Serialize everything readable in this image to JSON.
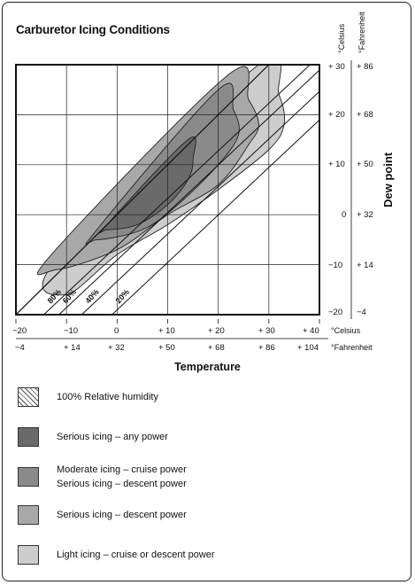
{
  "chart_data": {
    "type": "area",
    "title": "Carburetor Icing Conditions",
    "xlabel": "Temperature",
    "ylabel": "Dew point",
    "xlim": [
      -20,
      40
    ],
    "ylim": [
      -20,
      30
    ],
    "x_ticks_celsius": [
      "−20",
      "−10",
      "0",
      "+ 10",
      "+ 20",
      "+ 30",
      "+ 40"
    ],
    "x_ticks_fahrenheit": [
      "−4",
      "+ 14",
      "+ 32",
      "+ 50",
      "+ 68",
      "+ 86",
      "+ 104"
    ],
    "x_unit_celsius": "°Celsius",
    "x_unit_fahrenheit": "°Fahrenheit",
    "y_ticks_celsius": [
      "+ 30",
      "+ 20",
      "+ 10",
      "0",
      "−10",
      "−20"
    ],
    "y_ticks_fahrenheit": [
      "+ 86",
      "+ 68",
      "+ 50",
      "+ 32",
      "+ 14",
      "−4"
    ],
    "y_unit_celsius": "°Celsius",
    "y_unit_fahrenheit": "°Fahrenheit",
    "grid": true,
    "humidity_lines": [
      {
        "label": "20%",
        "x_at_min_dew": -1
      },
      {
        "label": "40%",
        "x_at_min_dew": -7
      },
      {
        "label": "60%",
        "x_at_min_dew": -11.5
      },
      {
        "label": "80%",
        "x_at_min_dew": -14.5
      }
    ],
    "regions": [
      {
        "name": "Light icing – cruise or descent power",
        "color": "#cdcdcd",
        "boundary": [
          [
            -10,
            -16
          ],
          [
            0,
            -8
          ],
          [
            10,
            -2
          ],
          [
            20,
            5
          ],
          [
            30,
            13
          ],
          [
            33,
            18
          ],
          [
            32,
            24
          ],
          [
            28,
            30
          ],
          [
            -12,
            -9
          ]
        ]
      },
      {
        "name": "Serious icing – descent power",
        "color": "#a8a8a8",
        "boundary": [
          [
            -12,
            -11
          ],
          [
            0,
            -7
          ],
          [
            10,
            0
          ],
          [
            20,
            6
          ],
          [
            26,
            14
          ],
          [
            28,
            18
          ],
          [
            26,
            23
          ],
          [
            22,
            28
          ],
          [
            -13,
            -8
          ]
        ]
      },
      {
        "name": "Moderate icing – cruise power / Serious icing – descent power",
        "color": "#8a8a8a",
        "boundary": [
          [
            -4,
            -5
          ],
          [
            5,
            -3
          ],
          [
            12,
            2
          ],
          [
            20,
            10
          ],
          [
            24,
            16
          ],
          [
            23,
            21
          ],
          [
            20,
            25
          ],
          [
            -4,
            -3
          ]
        ]
      },
      {
        "name": "Serious icing – any power",
        "color": "#6a6a6a",
        "boundary": [
          [
            -2,
            -3
          ],
          [
            4,
            -2
          ],
          [
            10,
            2
          ],
          [
            14,
            7
          ],
          [
            15,
            11
          ],
          [
            14,
            15
          ],
          [
            -2,
            -2
          ]
        ]
      }
    ],
    "saturation_line": [
      [
        -20,
        -20
      ],
      [
        30,
        30
      ]
    ],
    "legend": [
      {
        "label": "100% Relative humidity",
        "fill": "hatch"
      },
      {
        "label": "Serious icing – any power",
        "fill": "#6a6a6a"
      },
      {
        "label": "Moderate icing – cruise power",
        "label2": "Serious icing – descent power",
        "fill": "#8a8a8a"
      },
      {
        "label": "Serious icing – descent power",
        "fill": "#a8a8a8"
      },
      {
        "label": "Light icing – cruise or descent power",
        "fill": "#cdcdcd"
      }
    ]
  }
}
